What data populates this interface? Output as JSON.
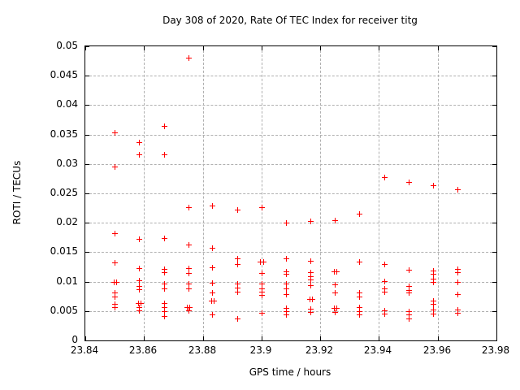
{
  "chart_data": {
    "type": "scatter",
    "title": "Day 308 of 2020, Rate Of TEC Index for receiver titg",
    "xlabel": "GPS time / hours",
    "ylabel": "ROTI / TECUs",
    "xlim": [
      23.84,
      23.98
    ],
    "ylim": [
      0,
      0.05
    ],
    "grid": true,
    "legend": "none",
    "marker": "plus",
    "marker_color": "#ff0000",
    "grid_color": "#b0b0b0",
    "border_color": "#000000",
    "background_color": "#ffffff",
    "x_ticks": {
      "values": [
        23.84,
        23.86,
        23.88,
        23.9,
        23.92,
        23.94,
        23.96,
        23.98
      ],
      "labels": [
        "23.84",
        "23.86",
        "23.88",
        "23.9",
        "23.92",
        "23.94",
        "23.96",
        "23.98"
      ]
    },
    "y_ticks": {
      "values": [
        0,
        0.005,
        0.01,
        0.015,
        0.02,
        0.025,
        0.03,
        0.035,
        0.04,
        0.045,
        0.05
      ],
      "labels": [
        "0",
        "0.005",
        "0.01",
        "0.015",
        "0.02",
        "0.025",
        "0.03",
        "0.035",
        "0.04",
        "0.045",
        "0.05"
      ]
    },
    "series": [
      {
        "name": "ROTI",
        "points": [
          [
            23.85,
            0.0353
          ],
          [
            23.85,
            0.0296
          ],
          [
            23.85,
            0.0182
          ],
          [
            23.85,
            0.0133
          ],
          [
            23.8496,
            0.0099
          ],
          [
            23.8505,
            0.0099
          ],
          [
            23.85,
            0.0081
          ],
          [
            23.85,
            0.0075
          ],
          [
            23.85,
            0.0062
          ],
          [
            23.85,
            0.0056
          ],
          [
            23.8583,
            0.0337
          ],
          [
            23.8583,
            0.0316
          ],
          [
            23.8583,
            0.0173
          ],
          [
            23.8583,
            0.0123
          ],
          [
            23.8583,
            0.0102
          ],
          [
            23.8583,
            0.0093
          ],
          [
            23.8583,
            0.0087
          ],
          [
            23.8579,
            0.0063
          ],
          [
            23.8588,
            0.0063
          ],
          [
            23.8583,
            0.0057
          ],
          [
            23.8583,
            0.0051
          ],
          [
            23.8667,
            0.0364
          ],
          [
            23.8667,
            0.0316
          ],
          [
            23.8667,
            0.0174
          ],
          [
            23.8667,
            0.0122
          ],
          [
            23.8667,
            0.0116
          ],
          [
            23.8667,
            0.0097
          ],
          [
            23.8667,
            0.0089
          ],
          [
            23.8667,
            0.0063
          ],
          [
            23.8667,
            0.0056
          ],
          [
            23.8667,
            0.005
          ],
          [
            23.8667,
            0.0042
          ],
          [
            23.875,
            0.0481
          ],
          [
            23.875,
            0.0226
          ],
          [
            23.875,
            0.0163
          ],
          [
            23.875,
            0.0123
          ],
          [
            23.875,
            0.0114
          ],
          [
            23.875,
            0.0097
          ],
          [
            23.875,
            0.0089
          ],
          [
            23.8746,
            0.0057
          ],
          [
            23.8755,
            0.0057
          ],
          [
            23.875,
            0.0051
          ],
          [
            23.8833,
            0.0229
          ],
          [
            23.8833,
            0.0157
          ],
          [
            23.8833,
            0.0125
          ],
          [
            23.8833,
            0.0098
          ],
          [
            23.8833,
            0.0081
          ],
          [
            23.8829,
            0.0068
          ],
          [
            23.8838,
            0.0068
          ],
          [
            23.8833,
            0.0044
          ],
          [
            23.8917,
            0.0222
          ],
          [
            23.8917,
            0.014
          ],
          [
            23.8917,
            0.013
          ],
          [
            23.8917,
            0.0097
          ],
          [
            23.8917,
            0.009
          ],
          [
            23.8917,
            0.0083
          ],
          [
            23.8917,
            0.0037
          ],
          [
            23.9,
            0.0226
          ],
          [
            23.8996,
            0.0134
          ],
          [
            23.9005,
            0.0134
          ],
          [
            23.9,
            0.0115
          ],
          [
            23.9,
            0.0096
          ],
          [
            23.9,
            0.0089
          ],
          [
            23.9,
            0.0083
          ],
          [
            23.9,
            0.0077
          ],
          [
            23.9,
            0.0047
          ],
          [
            23.9083,
            0.02
          ],
          [
            23.9083,
            0.014
          ],
          [
            23.9083,
            0.0118
          ],
          [
            23.9083,
            0.0113
          ],
          [
            23.9083,
            0.0096
          ],
          [
            23.9083,
            0.0088
          ],
          [
            23.9083,
            0.0079
          ],
          [
            23.9083,
            0.0055
          ],
          [
            23.9083,
            0.005
          ],
          [
            23.9083,
            0.0044
          ],
          [
            23.9167,
            0.0203
          ],
          [
            23.9167,
            0.0136
          ],
          [
            23.9167,
            0.0116
          ],
          [
            23.9167,
            0.0109
          ],
          [
            23.9167,
            0.0104
          ],
          [
            23.9167,
            0.0094
          ],
          [
            23.9163,
            0.0071
          ],
          [
            23.9172,
            0.0071
          ],
          [
            23.9167,
            0.0054
          ],
          [
            23.9167,
            0.0049
          ],
          [
            23.925,
            0.0205
          ],
          [
            23.9246,
            0.0117
          ],
          [
            23.9255,
            0.0117
          ],
          [
            23.925,
            0.0095
          ],
          [
            23.925,
            0.0081
          ],
          [
            23.9246,
            0.0055
          ],
          [
            23.9255,
            0.0055
          ],
          [
            23.925,
            0.0048
          ],
          [
            23.9333,
            0.0215
          ],
          [
            23.9333,
            0.0134
          ],
          [
            23.9333,
            0.0081
          ],
          [
            23.9333,
            0.0075
          ],
          [
            23.9333,
            0.0056
          ],
          [
            23.9333,
            0.005
          ],
          [
            23.9333,
            0.0044
          ],
          [
            23.9417,
            0.0278
          ],
          [
            23.9417,
            0.013
          ],
          [
            23.9417,
            0.0101
          ],
          [
            23.9417,
            0.0089
          ],
          [
            23.9417,
            0.0083
          ],
          [
            23.9417,
            0.0051
          ],
          [
            23.9417,
            0.0045
          ],
          [
            23.95,
            0.0269
          ],
          [
            23.95,
            0.012
          ],
          [
            23.95,
            0.0092
          ],
          [
            23.95,
            0.0086
          ],
          [
            23.95,
            0.0081
          ],
          [
            23.95,
            0.005
          ],
          [
            23.95,
            0.0044
          ],
          [
            23.95,
            0.0037
          ],
          [
            23.9583,
            0.0264
          ],
          [
            23.9583,
            0.0119
          ],
          [
            23.9583,
            0.0113
          ],
          [
            23.9583,
            0.0105
          ],
          [
            23.9583,
            0.0099
          ],
          [
            23.9583,
            0.0068
          ],
          [
            23.9583,
            0.0062
          ],
          [
            23.9583,
            0.0052
          ],
          [
            23.9583,
            0.0045
          ],
          [
            23.9667,
            0.0257
          ],
          [
            23.9667,
            0.0122
          ],
          [
            23.9667,
            0.0116
          ],
          [
            23.9667,
            0.01
          ],
          [
            23.9667,
            0.0079
          ],
          [
            23.9667,
            0.0052
          ],
          [
            23.9667,
            0.0047
          ]
        ]
      }
    ]
  }
}
